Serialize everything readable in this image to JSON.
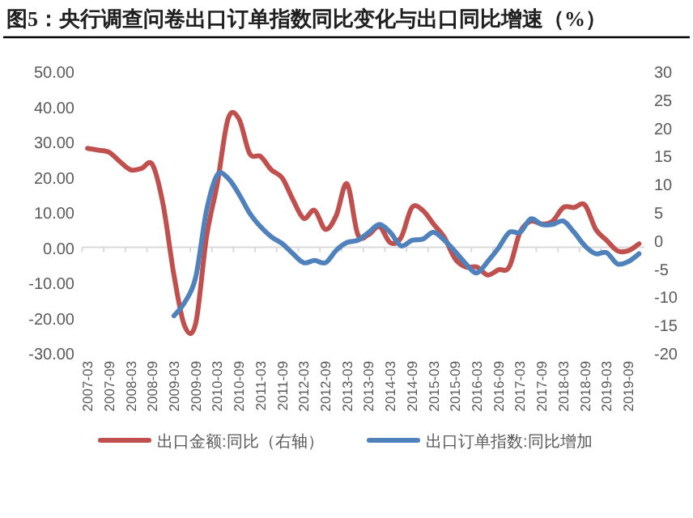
{
  "chart_data": {
    "type": "line",
    "title": "图5：央行调查问卷出口订单指数同比变化与出口同比增速（%）",
    "categories": [
      "2007-03",
      null,
      "2007-09",
      null,
      "2008-03",
      null,
      "2008-09",
      null,
      "2009-03",
      null,
      "2009-09",
      null,
      "2010-03",
      null,
      "2010-09",
      null,
      "2011-03",
      null,
      "2011-09",
      null,
      "2012-03",
      null,
      "2012-09",
      null,
      "2013-03",
      null,
      "2013-09",
      null,
      "2014-03",
      null,
      "2014-09",
      null,
      "2015-03",
      null,
      "2015-09",
      null,
      "2016-03",
      null,
      "2016-09",
      null,
      "2017-03",
      null,
      "2017-09",
      null,
      "2018-03",
      null,
      "2018-09",
      null,
      "2019-03",
      null,
      "2019-09",
      null
    ],
    "series": [
      {
        "name": "出口金额:同比（右轴）",
        "color": "#c0504d",
        "values": [
          28.1,
          27.6,
          27.0,
          24.3,
          22.0,
          22.4,
          23.5,
          12,
          -8,
          -22.5,
          -21.7,
          2.8,
          18,
          36.5,
          36.5,
          26.6,
          25.8,
          22,
          19.7,
          13.5,
          8.2,
          10.5,
          5.1,
          9,
          18,
          3.6,
          3.6,
          5.9,
          1.3,
          2.8,
          11.3,
          10.5,
          6.6,
          2.8,
          -3.3,
          -5.6,
          -5.6,
          -7.9,
          -6.4,
          -5.6,
          4.3,
          7.4,
          6.6,
          7.4,
          11.3,
          11.3,
          12,
          5.1,
          2,
          -1,
          -1,
          1
        ]
      },
      {
        "name": "出口订单指数:同比增加",
        "color": "#4f81bd",
        "axis": "y2",
        "values": [
          null,
          null,
          null,
          null,
          null,
          null,
          null,
          null,
          -13.4,
          -11,
          -6.6,
          5.2,
          11.6,
          11,
          8.2,
          4.8,
          2.4,
          0.6,
          -0.6,
          -2.4,
          -4,
          -3.6,
          -4,
          -1.8,
          -0.4,
          0,
          1.4,
          2.8,
          1.4,
          -1,
          0,
          0.2,
          1.4,
          0,
          -2,
          -4.2,
          -5.8,
          -3.8,
          -1.4,
          1.4,
          1.4,
          3.8,
          2.8,
          2.8,
          3.4,
          1.4,
          -1,
          -2.4,
          -2.2,
          -4.2,
          -3.8,
          -2.4
        ]
      }
    ],
    "ylim": [
      -30,
      50
    ],
    "yticks": [
      {
        "value": -30,
        "label": "-30.00"
      },
      {
        "value": -20,
        "label": "-20.00"
      },
      {
        "value": -10,
        "label": "-10.00"
      },
      {
        "value": 0,
        "label": "0.00"
      },
      {
        "value": 10,
        "label": "10.00"
      },
      {
        "value": 20,
        "label": "20.00"
      },
      {
        "value": 30,
        "label": "30.00"
      },
      {
        "value": 40,
        "label": "40.00"
      },
      {
        "value": 50,
        "label": "50.00"
      }
    ],
    "y2lim": [
      -20,
      30
    ],
    "y2ticks": [
      -20,
      -15,
      -10,
      -5,
      0,
      5,
      10,
      15,
      20,
      25,
      30
    ],
    "legend": "bottom"
  }
}
